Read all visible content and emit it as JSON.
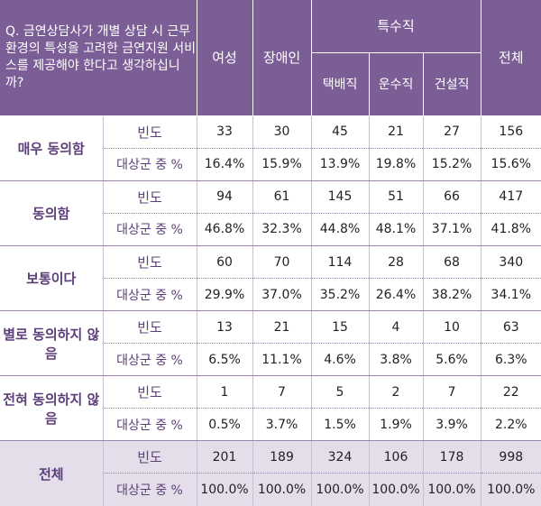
{
  "header": {
    "question": "Q. 금연상담사가 개별 상담 시 근무환경의 특성을 고려한 금연지원 서비스를 제공해야 한다고 생각하십니까?",
    "cols": [
      "여성",
      "장애인",
      "택배직",
      "운수직",
      "건설직",
      "전체"
    ],
    "group": "특수직"
  },
  "labels": {
    "freq": "빈도",
    "pct": "대상군 중 %"
  },
  "rows": [
    {
      "cat": "매우 동의함",
      "freq": [
        "33",
        "30",
        "45",
        "21",
        "27",
        "156"
      ],
      "pct": [
        "16.4%",
        "15.9%",
        "13.9%",
        "19.8%",
        "15.2%",
        "15.6%"
      ]
    },
    {
      "cat": "동의함",
      "freq": [
        "94",
        "61",
        "145",
        "51",
        "66",
        "417"
      ],
      "pct": [
        "46.8%",
        "32.3%",
        "44.8%",
        "48.1%",
        "37.1%",
        "41.8%"
      ]
    },
    {
      "cat": "보통이다",
      "freq": [
        "60",
        "70",
        "114",
        "28",
        "68",
        "340"
      ],
      "pct": [
        "29.9%",
        "37.0%",
        "35.2%",
        "26.4%",
        "38.2%",
        "34.1%"
      ]
    },
    {
      "cat": "별로 동의하지 않음",
      "freq": [
        "13",
        "21",
        "15",
        "4",
        "10",
        "63"
      ],
      "pct": [
        "6.5%",
        "11.1%",
        "4.6%",
        "3.8%",
        "5.6%",
        "6.3%"
      ]
    },
    {
      "cat": "전혀 동의하지 않음",
      "freq": [
        "1",
        "7",
        "5",
        "2",
        "7",
        "22"
      ],
      "pct": [
        "0.5%",
        "3.7%",
        "1.5%",
        "1.9%",
        "3.9%",
        "2.2%"
      ]
    },
    {
      "cat": "전체",
      "freq": [
        "201",
        "189",
        "324",
        "106",
        "178",
        "998"
      ],
      "pct": [
        "100.0%",
        "100.0%",
        "100.0%",
        "100.0%",
        "100.0%",
        "100.0%"
      ]
    }
  ]
}
